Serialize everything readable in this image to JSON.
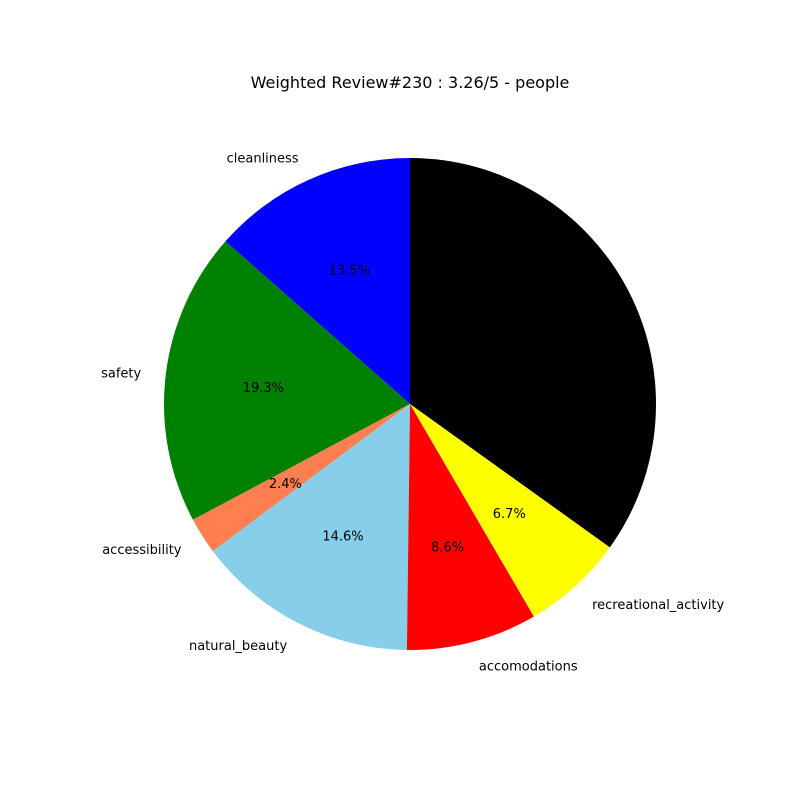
{
  "chart_data": {
    "type": "pie",
    "title": "Weighted Review#230 : 3.26/5 - people",
    "start_angle_deg": 90,
    "direction": "counterclockwise",
    "slices": [
      {
        "label": "cleanliness",
        "value": 13.5,
        "pct_label": "13.5%",
        "color": "#0000ff"
      },
      {
        "label": "safety",
        "value": 19.3,
        "pct_label": "19.3%",
        "color": "#008000"
      },
      {
        "label": "accessibility",
        "value": 2.4,
        "pct_label": "2.4%",
        "color": "#ff7f50"
      },
      {
        "label": "natural_beauty",
        "value": 14.6,
        "pct_label": "14.6%",
        "color": "#87ceeb"
      },
      {
        "label": "accomodations",
        "value": 8.6,
        "pct_label": "8.6%",
        "color": "#ff0000"
      },
      {
        "label": "recreational_activity",
        "value": 6.7,
        "pct_label": "6.7%",
        "color": "#ffff00"
      },
      {
        "label": "",
        "value": 34.9,
        "pct_label": "",
        "color": "#000000"
      }
    ]
  }
}
